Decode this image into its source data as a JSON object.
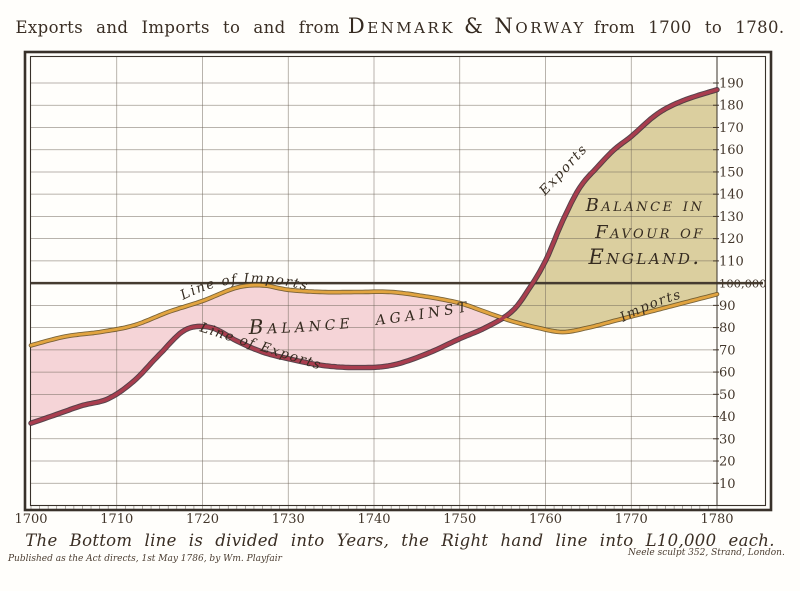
{
  "title": {
    "prefix": "Exports and Imports to and from",
    "emphasis": "Denmark & Norway",
    "suffix": "from 1700 to 1780."
  },
  "caption": "The Bottom line is divided into Years, the Right hand line into L10,000 each.",
  "credits": {
    "publisher": "Published as the Act directs, 1st May 1786, by Wm. Playfair",
    "engraver": "Neele sculpt 352, Strand, London."
  },
  "annotations": {
    "line_of_imports": "Line of Imports",
    "line_of_exports": "Line of Exports",
    "balance_against": "Balance against",
    "balance_favour_line1": "Balance in",
    "balance_favour_line2": "Favour of",
    "balance_favour_line3": "England.",
    "exports": "Exports",
    "imports": "Imports"
  },
  "chart_data": {
    "type": "area",
    "title": "Exports and Imports to and from Denmark & Norway from 1700 to 1780",
    "xlabel": "Years",
    "ylabel": "L10,000 each division",
    "xlim": [
      1700,
      1780
    ],
    "ylim": [
      0,
      200
    ],
    "grid": {
      "horizontal_step": 10,
      "vertical_step_years": 10,
      "emphasis_value": 100
    },
    "x_ticks": [
      "1700",
      "1710",
      "1720",
      "1730",
      "1740",
      "1750",
      "1760",
      "1770",
      "1780"
    ],
    "y_ticks": [
      {
        "value": 10,
        "label": "10"
      },
      {
        "value": 20,
        "label": "20"
      },
      {
        "value": 30,
        "label": "30"
      },
      {
        "value": 40,
        "label": "40"
      },
      {
        "value": 50,
        "label": "50"
      },
      {
        "value": 60,
        "label": "60"
      },
      {
        "value": 70,
        "label": "70"
      },
      {
        "value": 80,
        "label": "80"
      },
      {
        "value": 90,
        "label": "90"
      },
      {
        "value": 100,
        "label": "100,000"
      },
      {
        "value": 110,
        "label": "110"
      },
      {
        "value": 120,
        "label": "120"
      },
      {
        "value": 130,
        "label": "130"
      },
      {
        "value": 140,
        "label": "140"
      },
      {
        "value": 150,
        "label": "150"
      },
      {
        "value": 160,
        "label": "160"
      },
      {
        "value": 170,
        "label": "170"
      },
      {
        "value": 180,
        "label": "180"
      },
      {
        "value": 190,
        "label": "190"
      }
    ],
    "series": [
      {
        "name": "Imports",
        "color": "#e2a440",
        "edge_color": "#6b5426",
        "points": [
          [
            1700,
            72
          ],
          [
            1704,
            76
          ],
          [
            1708,
            78
          ],
          [
            1712,
            81
          ],
          [
            1716,
            87
          ],
          [
            1720,
            92
          ],
          [
            1724,
            98
          ],
          [
            1727,
            99
          ],
          [
            1730,
            97
          ],
          [
            1734,
            96
          ],
          [
            1738,
            96
          ],
          [
            1742,
            96
          ],
          [
            1746,
            94
          ],
          [
            1750,
            91
          ],
          [
            1753,
            87
          ],
          [
            1756,
            83
          ],
          [
            1759,
            80
          ],
          [
            1762,
            78
          ],
          [
            1765,
            80
          ],
          [
            1768,
            83
          ],
          [
            1771,
            86
          ],
          [
            1774,
            89
          ],
          [
            1777,
            92
          ],
          [
            1780,
            95
          ]
        ]
      },
      {
        "name": "Exports",
        "color": "#a93d4e",
        "edge_color": "#46313a",
        "points": [
          [
            1700,
            37
          ],
          [
            1703,
            41
          ],
          [
            1706,
            45
          ],
          [
            1709,
            48
          ],
          [
            1712,
            56
          ],
          [
            1715,
            68
          ],
          [
            1718,
            79
          ],
          [
            1721,
            80
          ],
          [
            1724,
            74
          ],
          [
            1727,
            69
          ],
          [
            1730,
            66
          ],
          [
            1734,
            63
          ],
          [
            1738,
            62
          ],
          [
            1742,
            63
          ],
          [
            1746,
            68
          ],
          [
            1750,
            75
          ],
          [
            1753,
            80
          ],
          [
            1756,
            87
          ],
          [
            1758,
            97
          ],
          [
            1760,
            110
          ],
          [
            1762,
            128
          ],
          [
            1764,
            143
          ],
          [
            1766,
            152
          ],
          [
            1768,
            160
          ],
          [
            1770,
            166
          ],
          [
            1773,
            176
          ],
          [
            1776,
            182
          ],
          [
            1780,
            187
          ]
        ]
      }
    ],
    "regions": [
      {
        "name": "Balance against England",
        "fill": "#f5d4d7"
      },
      {
        "name": "Balance in favour of England",
        "fill": "#dbcf9f"
      }
    ]
  }
}
